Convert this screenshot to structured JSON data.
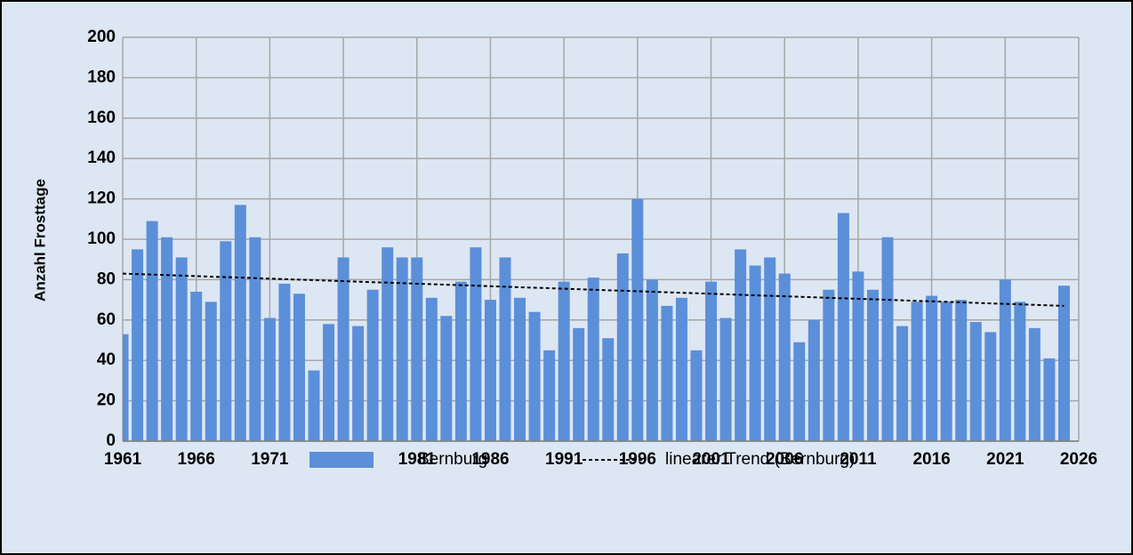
{
  "chart_data": {
    "type": "bar",
    "y_label": "Anzahl Frosttage",
    "x": [
      1961,
      1962,
      1963,
      1964,
      1965,
      1966,
      1967,
      1968,
      1969,
      1970,
      1971,
      1972,
      1973,
      1974,
      1975,
      1976,
      1977,
      1978,
      1979,
      1980,
      1981,
      1982,
      1983,
      1984,
      1985,
      1986,
      1987,
      1988,
      1989,
      1990,
      1991,
      1992,
      1993,
      1994,
      1995,
      1996,
      1997,
      1998,
      1999,
      2000,
      2001,
      2002,
      2003,
      2004,
      2005,
      2006,
      2007,
      2008,
      2009,
      2010,
      2011,
      2012,
      2013,
      2014,
      2015,
      2016,
      2017,
      2018,
      2019,
      2020,
      2021,
      2022,
      2023,
      2024,
      2025
    ],
    "series": [
      {
        "name": "Bernburg",
        "color": "#5b8fd9",
        "values": [
          53,
          95,
          109,
          101,
          91,
          74,
          69,
          99,
          117,
          101,
          61,
          78,
          73,
          35,
          58,
          91,
          57,
          75,
          96,
          91,
          91,
          71,
          62,
          79,
          96,
          70,
          91,
          71,
          64,
          45,
          79,
          56,
          81,
          51,
          93,
          120,
          80,
          67,
          71,
          45,
          79,
          61,
          95,
          87,
          91,
          83,
          49,
          60,
          75,
          113,
          84,
          75,
          101,
          57,
          69,
          72,
          69,
          70,
          59,
          54,
          80,
          69,
          56,
          41,
          77
        ]
      }
    ],
    "trend": {
      "name": "linearer Trend (Bernburg)",
      "color": "#000000",
      "x": [
        1961,
        2025
      ],
      "values": [
        83,
        67
      ]
    },
    "xlim": [
      1961,
      2026
    ],
    "xticks": [
      1961,
      1966,
      1971,
      1976,
      1981,
      1986,
      1991,
      1996,
      2001,
      2006,
      2011,
      2016,
      2021,
      2026
    ],
    "ylim": [
      0,
      200
    ],
    "yticks": [
      0,
      20,
      40,
      60,
      80,
      100,
      120,
      140,
      160,
      180,
      200
    ],
    "grid": true,
    "legend": "bottom"
  }
}
